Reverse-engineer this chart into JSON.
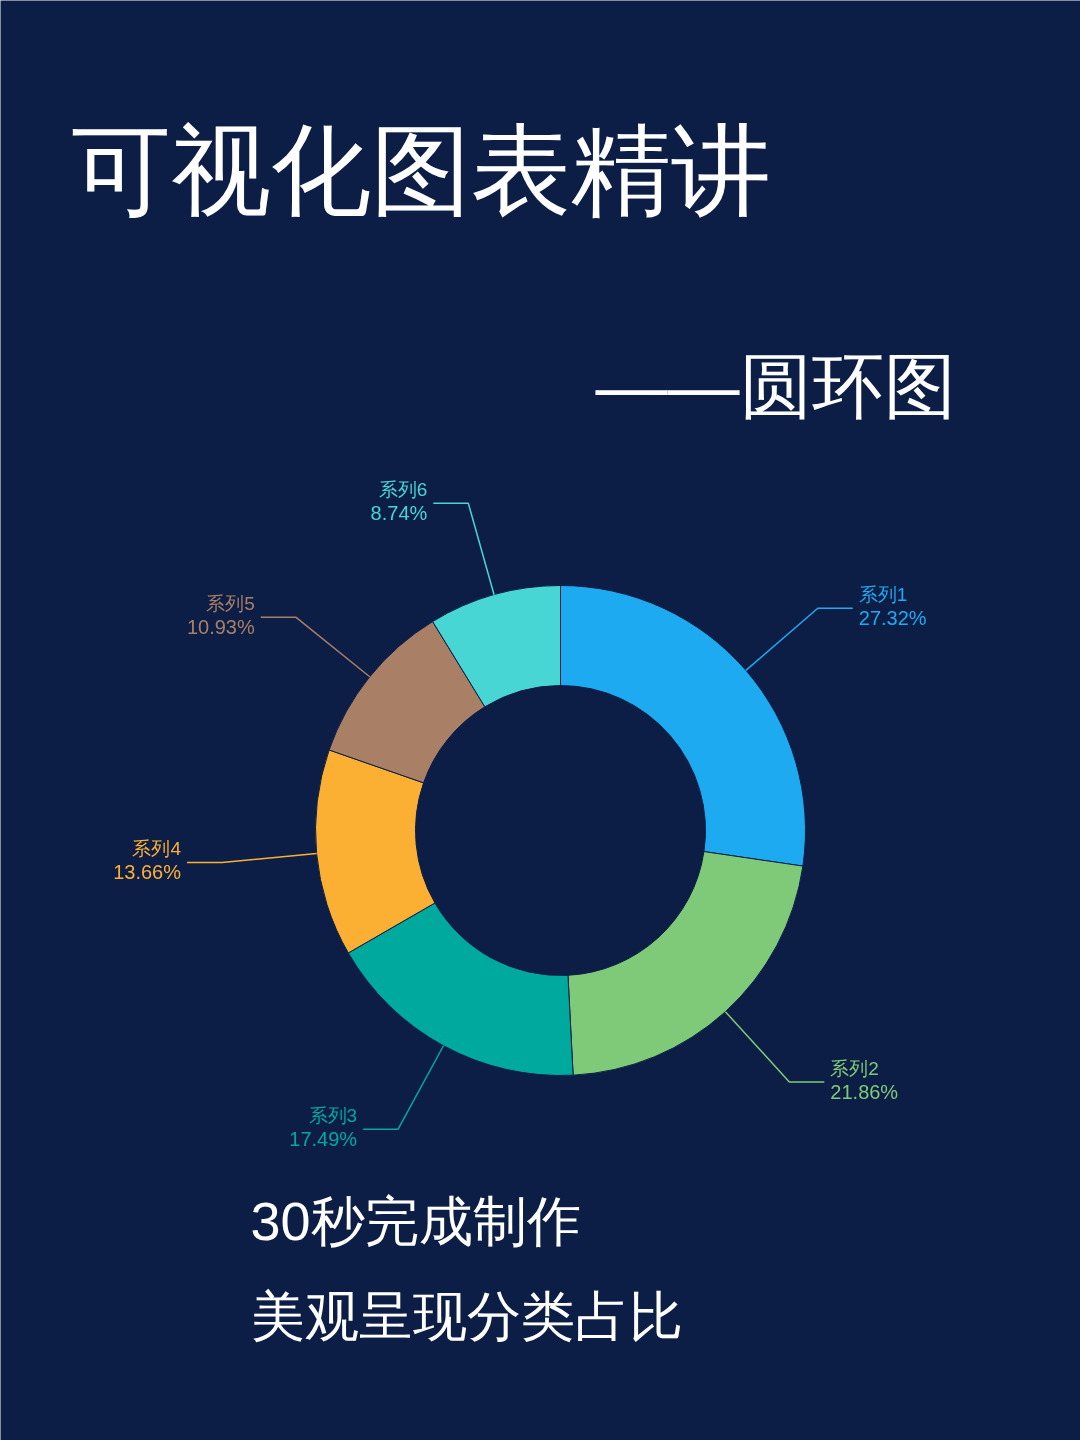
{
  "chart_data": {
    "type": "donut",
    "title": "可视化图表精讲",
    "subtitle": "——圆环图",
    "categories": [
      "系列1",
      "系列2",
      "系列3",
      "系列4",
      "系列5",
      "系列6"
    ],
    "values": [
      27.32,
      21.86,
      17.49,
      13.66,
      10.93,
      8.74
    ],
    "value_labels": [
      "27.32%",
      "21.86%",
      "17.49%",
      "13.66%",
      "10.93%",
      "8.74%"
    ],
    "colors": [
      "#1eaaf1",
      "#7fca78",
      "#00a99d",
      "#fbb034",
      "#a97f65",
      "#47d6d4"
    ],
    "annotations": [
      "30秒完成制作",
      "美观呈现分类占比"
    ]
  }
}
